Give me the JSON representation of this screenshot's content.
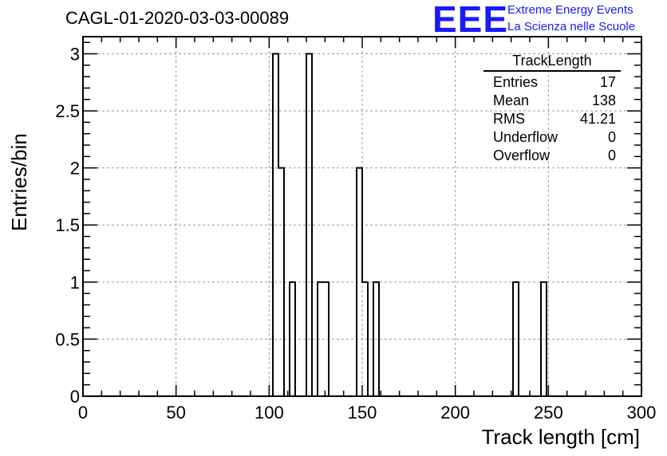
{
  "header": {
    "title": "CAGL-01-2020-03-03-00089",
    "logo": "EEE",
    "logo_line1": "Extreme Energy Events",
    "logo_line2": "La Scienza nelle Scuole"
  },
  "stats": {
    "name": "TrackLength",
    "rows": [
      {
        "label": "Entries",
        "value": "17"
      },
      {
        "label": "Mean",
        "value": "138"
      },
      {
        "label": "RMS",
        "value": "41.21"
      },
      {
        "label": "Underflow",
        "value": "0"
      },
      {
        "label": "Overflow",
        "value": "0"
      }
    ]
  },
  "chart_data": {
    "type": "bar",
    "title": "CAGL-01-2020-03-03-00089",
    "xlabel": "Track length [cm]",
    "ylabel": "Entries/bin",
    "xlim": [
      0,
      300
    ],
    "ylim": [
      0,
      3.15
    ],
    "bin_width": 3,
    "grid": true,
    "x_ticks": [
      0,
      50,
      100,
      150,
      200,
      250,
      300
    ],
    "x_tick_labels": [
      "0",
      "50",
      "100",
      "150",
      "200",
      "250",
      "300"
    ],
    "y_ticks": [
      0,
      0.5,
      1,
      1.5,
      2,
      2.5,
      3
    ],
    "y_tick_labels": [
      "0",
      "0.5",
      "1",
      "1.5",
      "2",
      "2.5",
      "3"
    ],
    "bins": [
      {
        "low": 102,
        "high": 105,
        "count": 3
      },
      {
        "low": 105,
        "high": 108,
        "count": 2
      },
      {
        "low": 111,
        "high": 114,
        "count": 1
      },
      {
        "low": 120,
        "high": 123,
        "count": 3
      },
      {
        "low": 126,
        "high": 129,
        "count": 1
      },
      {
        "low": 129,
        "high": 132,
        "count": 1
      },
      {
        "low": 147,
        "high": 150,
        "count": 2
      },
      {
        "low": 150,
        "high": 153,
        "count": 1
      },
      {
        "low": 156,
        "high": 159,
        "count": 1
      },
      {
        "low": 231,
        "high": 234,
        "count": 1
      },
      {
        "low": 246,
        "high": 249,
        "count": 1
      }
    ]
  }
}
